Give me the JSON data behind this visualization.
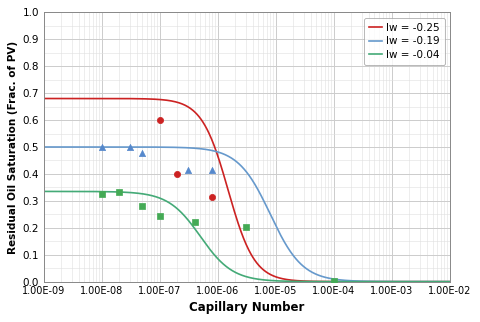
{
  "xlabel": "Capillary Number",
  "ylabel": "Residual Oil Saturation (Frac. of PV)",
  "xlim": [
    1e-09,
    0.01
  ],
  "ylim": [
    0,
    1
  ],
  "yticks": [
    0,
    0.1,
    0.2,
    0.3,
    0.4,
    0.5,
    0.6,
    0.7,
    0.8,
    0.9,
    1
  ],
  "xtick_vals": [
    1e-09,
    1e-08,
    1e-07,
    1e-06,
    1e-05,
    0.0001,
    0.001,
    0.01
  ],
  "xtick_labels": [
    "1.00E-09",
    "1.00E-08",
    "1.00E-07",
    "1.00E-06",
    "1.00E-05",
    "1.00E-04",
    "1.00E-03",
    "1.00E-02"
  ],
  "curves": [
    {
      "label": "lw = -0.25",
      "color": "#cc2222",
      "Sor_i": 0.68,
      "Nc_mid": 1.5e-06,
      "k": 2.2
    },
    {
      "label": "lw = -0.19",
      "color": "#6699cc",
      "Sor_i": 0.5,
      "Nc_mid": 8e-06,
      "k": 1.8
    },
    {
      "label": "lw = -0.04",
      "color": "#44aa77",
      "Sor_i": 0.335,
      "Nc_mid": 5e-07,
      "k": 1.8
    }
  ],
  "scatter": [
    {
      "color": "#cc2222",
      "marker": "o",
      "ms": 20,
      "points": [
        [
          1e-07,
          0.6
        ],
        [
          2e-07,
          0.4
        ],
        [
          8e-07,
          0.315
        ]
      ]
    },
    {
      "color": "#5588cc",
      "marker": "^",
      "ms": 20,
      "points": [
        [
          1e-08,
          0.5
        ],
        [
          3e-08,
          0.5
        ],
        [
          5e-08,
          0.477
        ],
        [
          3e-07,
          0.415
        ],
        [
          8e-07,
          0.415
        ]
      ]
    },
    {
      "color": "#44aa55",
      "marker": "s",
      "ms": 18,
      "points": [
        [
          1e-08,
          0.325
        ],
        [
          2e-08,
          0.333
        ],
        [
          5e-08,
          0.282
        ],
        [
          1e-07,
          0.244
        ],
        [
          4e-07,
          0.222
        ],
        [
          3e-06,
          0.202
        ],
        [
          0.0001,
          0.002
        ]
      ]
    }
  ],
  "bg_color": "#ffffff",
  "grid_color": "#cccccc",
  "grid_minor_color": "#e0e0e0"
}
